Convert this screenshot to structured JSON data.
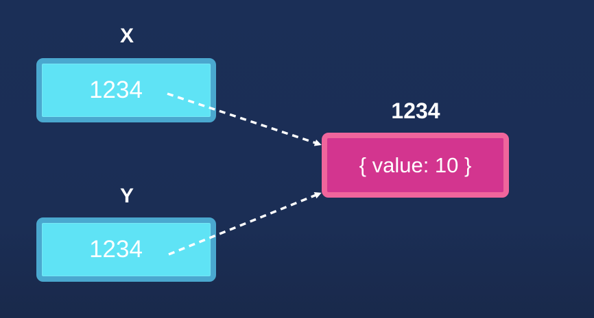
{
  "variables": [
    {
      "name": "X",
      "value": "1234"
    },
    {
      "name": "Y",
      "value": "1234"
    }
  ],
  "object": {
    "address": "1234",
    "content": "{ value: 10 }"
  },
  "colors": {
    "background": "#1b2e55",
    "reference_fill": "#5fe3f5",
    "reference_border": "#4aa8cf",
    "object_fill": "#d3358f",
    "object_border": "#f0659c",
    "arrow": "#ffffff"
  }
}
